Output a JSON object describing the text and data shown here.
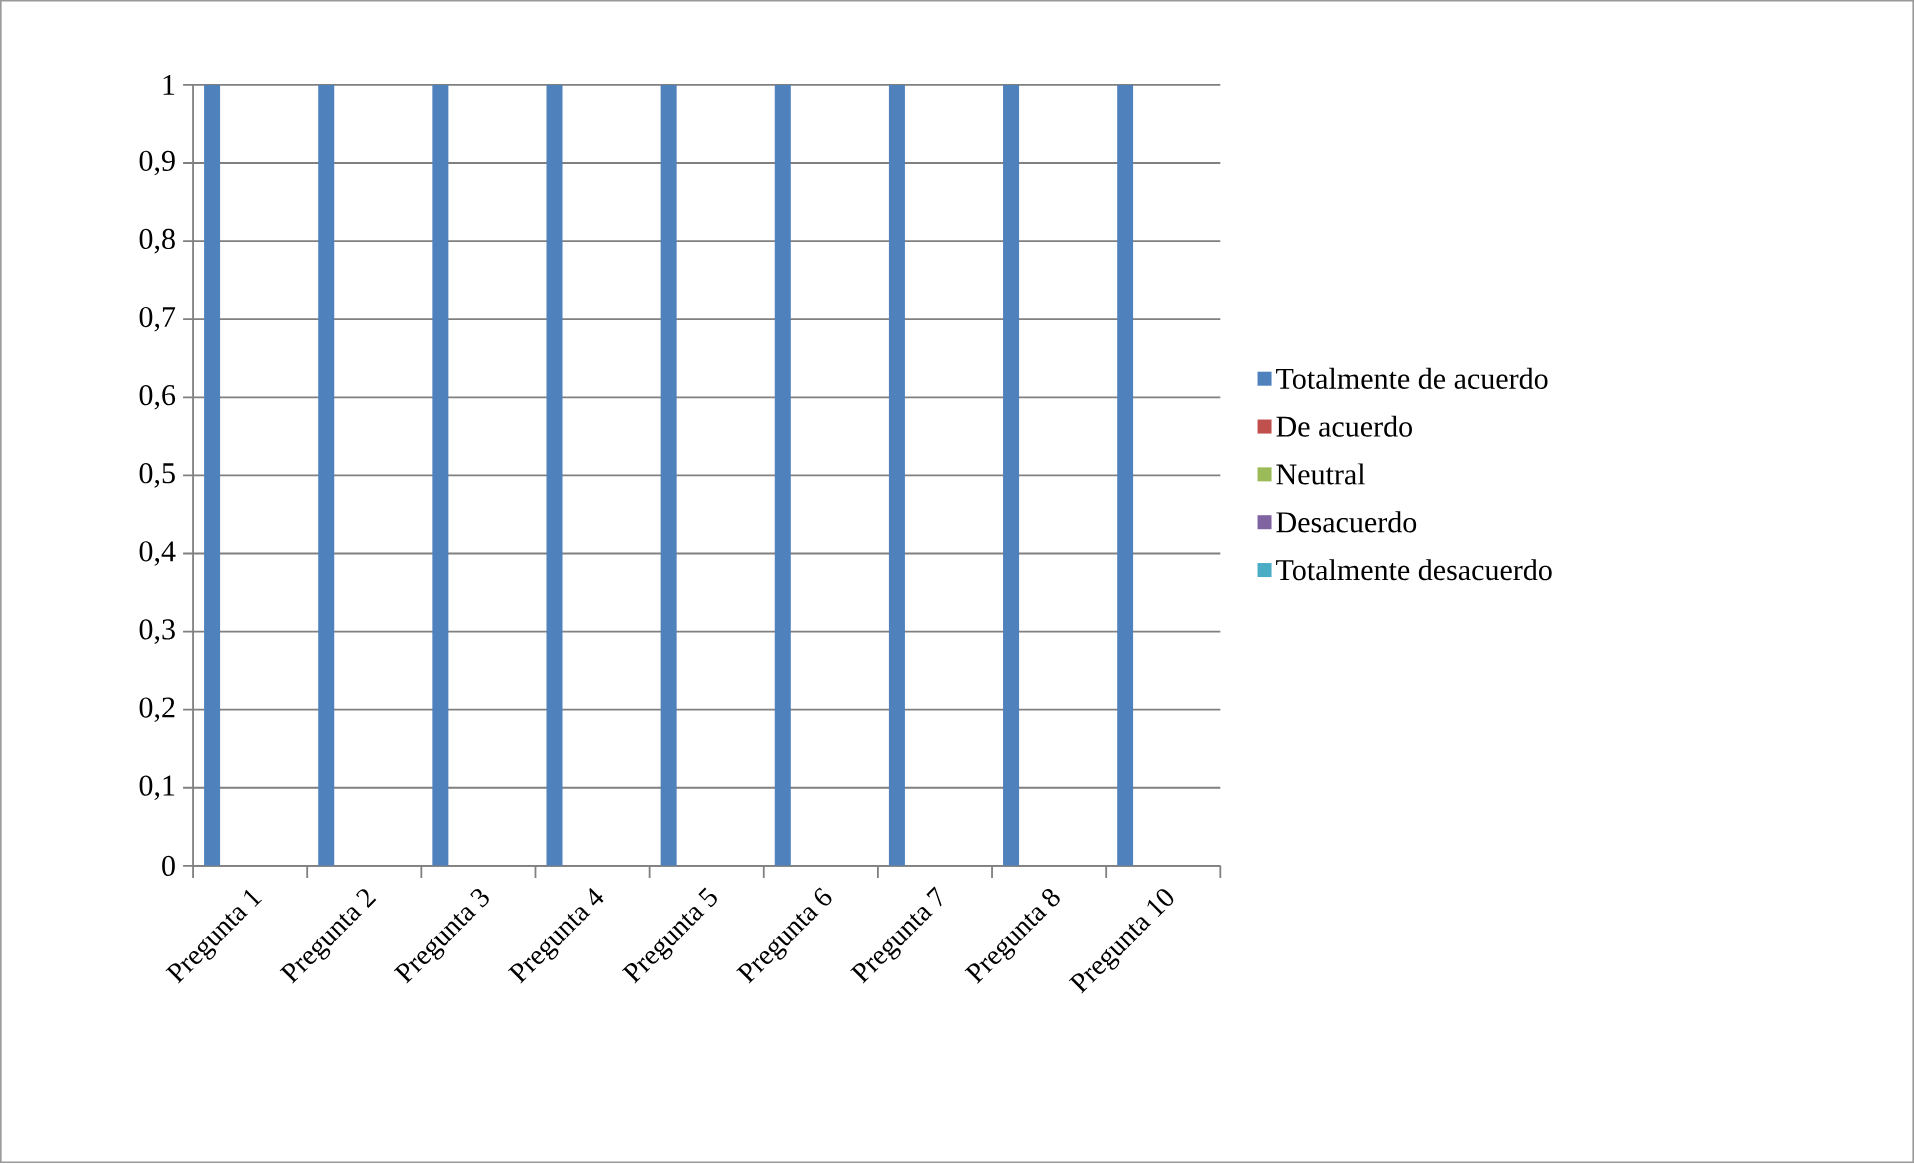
{
  "chart_data": {
    "type": "bar",
    "categories": [
      "Pregunta 1",
      "Pregunta 2",
      "Pregunta 3",
      "Pregunta 4",
      "Pregunta 5",
      "Pregunta 6",
      "Pregunta 7",
      "Pregunta 8",
      "Pregunta 10"
    ],
    "series": [
      {
        "name": "Totalmente de acuerdo",
        "color": "#4f81bd",
        "values": [
          1,
          1,
          1,
          1,
          1,
          1,
          1,
          1,
          1
        ]
      },
      {
        "name": "De acuerdo",
        "color": "#c0504d",
        "values": [
          0,
          0,
          0,
          0,
          0,
          0,
          0,
          0,
          0
        ]
      },
      {
        "name": "Neutral",
        "color": "#9bbb59",
        "values": [
          0,
          0,
          0,
          0,
          0,
          0,
          0,
          0,
          0
        ]
      },
      {
        "name": "Desacuerdo",
        "color": "#8064a2",
        "values": [
          0,
          0,
          0,
          0,
          0,
          0,
          0,
          0,
          0
        ]
      },
      {
        "name": "Totalmente desacuerdo",
        "color": "#4bacc6",
        "values": [
          0,
          0,
          0,
          0,
          0,
          0,
          0,
          0,
          0
        ]
      }
    ],
    "ylim": [
      0,
      1
    ],
    "yticks": [
      0,
      {
        "value": 0.1,
        "label": "0,1"
      },
      {
        "value": 0.2,
        "label": "0,2"
      },
      {
        "value": 0.3,
        "label": "0,3"
      },
      {
        "value": 0.4,
        "label": "0,4"
      },
      {
        "value": 0.5,
        "label": "0,5"
      },
      {
        "value": 0.6,
        "label": "0,6"
      },
      {
        "value": 0.7,
        "label": "0,7"
      },
      {
        "value": 0.8,
        "label": "0,8"
      },
      {
        "value": 0.9,
        "label": "0,9"
      },
      1
    ],
    "grid": "y",
    "legend": "right"
  }
}
